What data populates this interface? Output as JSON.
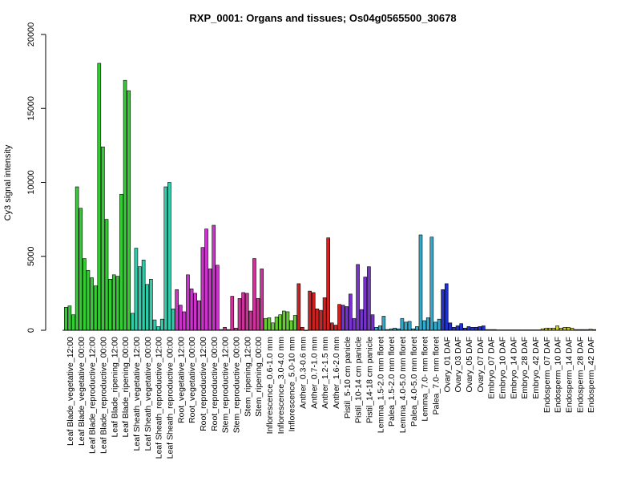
{
  "chart_data": {
    "type": "bar",
    "title": "RXP_0001: Organs and tissues; Os04g0565500_30678",
    "xlabel": "",
    "ylabel": "Cy3 signal intensity",
    "ylim": [
      0,
      20000
    ],
    "yticks": [
      0,
      5000,
      10000,
      15000,
      20000
    ],
    "grid": false,
    "legend": "none",
    "groups": [
      {
        "name": "Leaf Blade_vegetative_12:00",
        "color": "#33cc33",
        "values": [
          1550,
          1650,
          1050
        ]
      },
      {
        "name": "Leaf Blade_vegetative_00:00",
        "color": "#33cc33",
        "values": [
          9700,
          8250,
          4850
        ]
      },
      {
        "name": "Leaf Blade_reproductive_12:00",
        "color": "#33cc33",
        "values": [
          4050,
          3550,
          3000
        ]
      },
      {
        "name": "Leaf Blade_reproductive_00:00",
        "color": "#33cc33",
        "values": [
          18050,
          12400,
          7500
        ]
      },
      {
        "name": "Leaf Blade_ripening_12:00",
        "color": "#33cc33",
        "values": [
          3450,
          3750,
          3650
        ]
      },
      {
        "name": "Leaf Blade_ripening_00:00",
        "color": "#33cc33",
        "values": [
          9200,
          16900,
          16200
        ]
      },
      {
        "name": "Leaf Sheath_vegetative_12:00",
        "color": "#33ccaa",
        "values": [
          1150,
          5550,
          4300
        ]
      },
      {
        "name": "Leaf Sheath_vegetative_00:00",
        "color": "#33ccaa",
        "values": [
          4750,
          3100,
          3450
        ]
      },
      {
        "name": "Leaf Sheath_reproductive_12:00",
        "color": "#33ccaa",
        "values": [
          700,
          250,
          750
        ]
      },
      {
        "name": "Leaf Sheath_reproductive_00:00",
        "color": "#33ccaa",
        "values": [
          9700,
          10000,
          1450
        ]
      },
      {
        "name": "Root_vegetative_12:00",
        "color": "#cc33cc",
        "values": [
          2750,
          1700,
          1250
        ]
      },
      {
        "name": "Root_vegetative_00:00",
        "color": "#cc33cc",
        "values": [
          3750,
          2800,
          2500
        ]
      },
      {
        "name": "Root_reproductive_12:00",
        "color": "#cc33cc",
        "values": [
          2000,
          5600,
          6850
        ]
      },
      {
        "name": "Root_reproductive_00:00",
        "color": "#cc33cc",
        "values": [
          4150,
          7100,
          4400
        ]
      },
      {
        "name": "Stem_reproductive_12:00",
        "color": "#cc3399",
        "values": [
          50,
          200,
          50
        ]
      },
      {
        "name": "Stem_reproductive_00:00",
        "color": "#cc3399",
        "values": [
          2300,
          150,
          2150
        ]
      },
      {
        "name": "Stem_ripening_12:00",
        "color": "#cc3399",
        "values": [
          2550,
          2500,
          1300
        ]
      },
      {
        "name": "Stem_ripening_00:00",
        "color": "#cc3399",
        "values": [
          4850,
          2150,
          4150
        ]
      },
      {
        "name": "Inflorescence_0.6-1.0 mm",
        "color": "#66cc33",
        "values": [
          800,
          850,
          500
        ]
      },
      {
        "name": "Inflorescence_3.0-4.0 mm",
        "color": "#66cc33",
        "values": [
          900,
          1050,
          1300
        ]
      },
      {
        "name": "Inflorescence_5.0-10 mm",
        "color": "#66cc33",
        "values": [
          1250,
          650,
          1000
        ]
      },
      {
        "name": "Anther_0.3-0.6 mm",
        "color": "#cc2222",
        "values": [
          3150,
          200,
          0
        ]
      },
      {
        "name": "Anther_0.7-1.0 mm",
        "color": "#cc2222",
        "values": [
          2650,
          2550,
          1450
        ]
      },
      {
        "name": "Anther_1.2-1.5 mm",
        "color": "#cc2222",
        "values": [
          1350,
          2200,
          6250
        ]
      },
      {
        "name": "Anther_1.6-2.0 mm",
        "color": "#cc2222",
        "values": [
          500,
          350,
          1750
        ]
      },
      {
        "name": "Pistil_5-10 cm panicle",
        "color": "#7733cc",
        "values": [
          1700,
          1600,
          2450
        ]
      },
      {
        "name": "Pistil_10-14 cm panicle",
        "color": "#7733cc",
        "values": [
          800,
          4450,
          1400
        ]
      },
      {
        "name": "Pistil_14-18 cm panicle",
        "color": "#7733cc",
        "values": [
          3600,
          4300,
          1050
        ]
      },
      {
        "name": "Lemma_1.5-2.0 mm floret",
        "color": "#33aacc",
        "values": [
          200,
          300,
          950
        ]
      },
      {
        "name": "Palea_1.5-2.0 mm floret",
        "color": "#33aacc",
        "values": [
          50,
          100,
          150
        ]
      },
      {
        "name": "Lemma_4.0-5.0 mm floret",
        "color": "#33aacc",
        "values": [
          100,
          800,
          550
        ]
      },
      {
        "name": "Palea_4.0-5.0 mm floret",
        "color": "#33aacc",
        "values": [
          600,
          100,
          250
        ]
      },
      {
        "name": "Lemma_7.0- mm floret",
        "color": "#33aacc",
        "values": [
          6450,
          650,
          850
        ]
      },
      {
        "name": "Palea_7.0- mm floret",
        "color": "#33aacc",
        "values": [
          6300,
          550,
          750
        ]
      },
      {
        "name": "Ovary_01 DAF",
        "color": "#2233cc",
        "values": [
          2750,
          3150,
          500
        ]
      },
      {
        "name": "Ovary_03 DAF",
        "color": "#2233cc",
        "values": [
          200,
          300,
          450
        ]
      },
      {
        "name": "Ovary_05 DAF",
        "color": "#2233cc",
        "values": [
          150,
          250,
          200
        ]
      },
      {
        "name": "Ovary_07 DAF",
        "color": "#2233cc",
        "values": [
          200,
          250,
          300
        ]
      },
      {
        "name": "Embryo_07 DAF",
        "color": "#999933",
        "values": [
          50,
          50,
          50
        ]
      },
      {
        "name": "Embryo_10 DAF",
        "color": "#999933",
        "values": [
          30,
          30,
          30
        ]
      },
      {
        "name": "Embryo_14 DAF",
        "color": "#999933",
        "values": [
          30,
          30,
          30
        ]
      },
      {
        "name": "Embryo_28 DAF",
        "color": "#999933",
        "values": [
          30,
          30,
          30
        ]
      },
      {
        "name": "Embryo_42 DAF",
        "color": "#999933",
        "values": [
          30,
          30,
          30
        ]
      },
      {
        "name": "Endosperm_07 DAF",
        "color": "#cccc33",
        "values": [
          100,
          150,
          150
        ]
      },
      {
        "name": "Endosperm_10 DAF",
        "color": "#cccc33",
        "values": [
          150,
          300,
          150
        ]
      },
      {
        "name": "Endosperm_14 DAF",
        "color": "#cccc33",
        "values": [
          200,
          200,
          150
        ]
      },
      {
        "name": "Endosperm_28 DAF",
        "color": "#cccc33",
        "values": [
          50,
          50,
          50
        ]
      },
      {
        "name": "Endosperm_42 DAF",
        "color": "#cccc33",
        "values": [
          50,
          80,
          50
        ]
      }
    ]
  }
}
